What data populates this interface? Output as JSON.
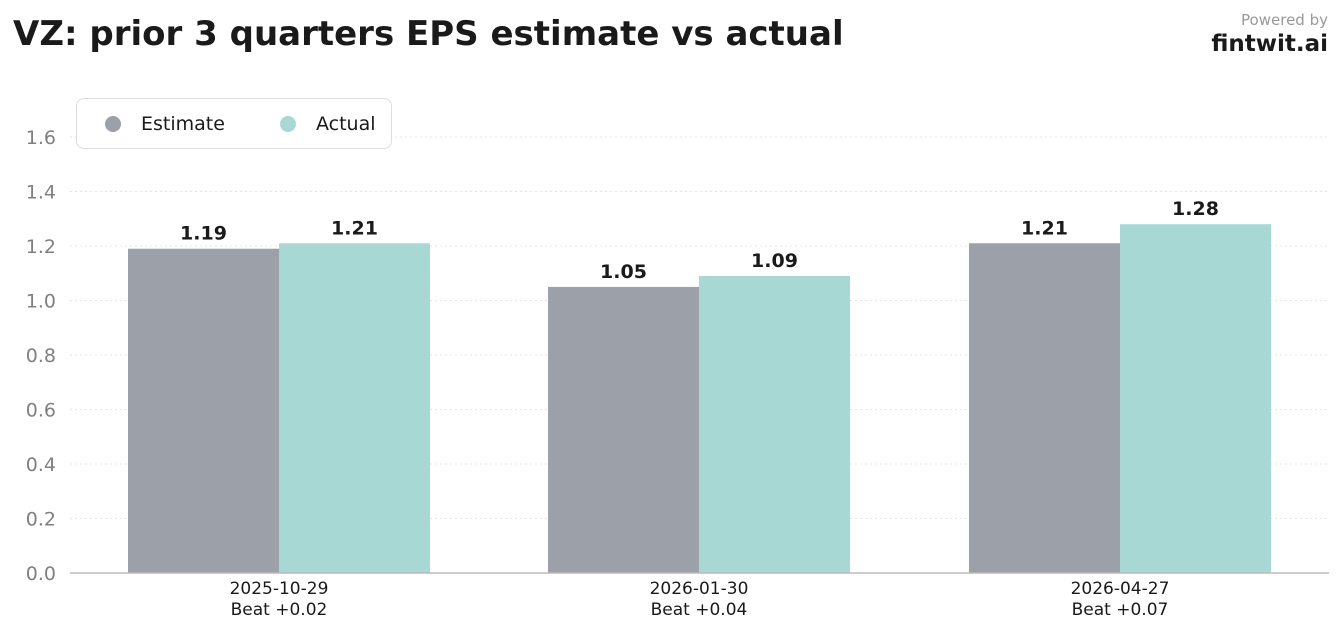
{
  "header": {
    "title": "VZ: prior 3 quarters EPS estimate vs actual",
    "powered_by": "Powered by",
    "brand": "fintwit.ai"
  },
  "colors": {
    "estimate": "#9ca0a8",
    "actual": "#a8d8d3",
    "axis": "#bbbbbb",
    "grid": "#e4e4e4",
    "tick_text": "#808080",
    "label_text": "#1a1a1a"
  },
  "chart_data": {
    "type": "bar",
    "title": "VZ: prior 3 quarters EPS estimate vs actual",
    "categories": [
      "2025-10-29",
      "2026-01-30",
      "2026-04-27"
    ],
    "category_sublabels": [
      "Beat +0.02",
      "Beat +0.04",
      "Beat +0.07"
    ],
    "series": [
      {
        "name": "Estimate",
        "values": [
          1.19,
          1.05,
          1.21
        ],
        "value_labels": [
          "1.19",
          "1.05",
          "1.21"
        ]
      },
      {
        "name": "Actual",
        "values": [
          1.21,
          1.09,
          1.28
        ],
        "value_labels": [
          "1.21",
          "1.09",
          "1.28"
        ]
      }
    ],
    "ylim": [
      0,
      1.6
    ],
    "yticks": [
      "0.0",
      "0.2",
      "0.4",
      "0.6",
      "0.8",
      "1.0",
      "1.2",
      "1.4",
      "1.6"
    ],
    "ytick_values": [
      0,
      0.2,
      0.4,
      0.6,
      0.8,
      1.0,
      1.2,
      1.4,
      1.6
    ],
    "xlabel": "",
    "ylabel": "",
    "grid": true,
    "legend_position": "top-left"
  }
}
